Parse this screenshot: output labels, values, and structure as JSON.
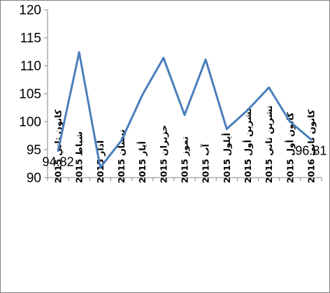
{
  "chart_data": {
    "type": "line",
    "title": "",
    "xlabel": "",
    "ylabel": "",
    "categories": [
      "كانون ثاني 2015",
      "شباط 2015",
      "آذار 2015",
      "نيسان 2015",
      "أيار 2015",
      "حزيران 2015",
      "تموز 2015",
      "آب 2015",
      "أيلول 2015",
      "تشرين أول 2015",
      "تشرين ثاني 2015",
      "كانون أول 2015",
      "كانون ثاني 2016"
    ],
    "series": [
      {
        "color": "#4a7ebb",
        "values": [
          94.82,
          112.4,
          91.8,
          96.6,
          104.8,
          111.4,
          101.2,
          111.1,
          98.7,
          102.1,
          106.1,
          100.0,
          96.81
        ]
      }
    ],
    "data_labels": [
      {
        "index": 0,
        "text": "94.82"
      },
      {
        "index": 12,
        "text": "96.81"
      }
    ],
    "ylim": [
      90,
      120
    ],
    "ytick_step": 5,
    "yticks": [
      "90",
      "95",
      "100",
      "105",
      "110",
      "115",
      "120"
    ],
    "grid": false,
    "legend": "none"
  }
}
